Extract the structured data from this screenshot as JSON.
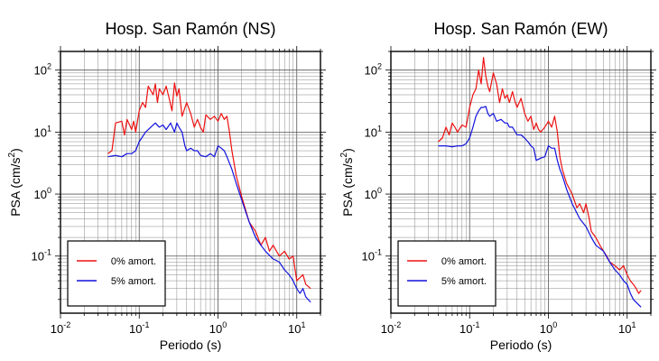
{
  "chart_data": [
    {
      "type": "line",
      "title": "Hosp. San Ramón (NS)",
      "xlabel": "Periodo (s)",
      "ylabel": "PSA (cm/s²)",
      "ylabel_main": "PSA (cm/s",
      "ylabel_sup": "2",
      "ylabel_close": ")",
      "x_scale": "log",
      "y_scale": "log",
      "xlim": [
        0.01,
        20
      ],
      "ylim": [
        0.012,
        200
      ],
      "grid": true,
      "legend_position": "bottom-left",
      "x_ticks": [
        {
          "value": 0.01,
          "base": "10",
          "exp": "-2"
        },
        {
          "value": 0.1,
          "base": "10",
          "exp": "-1"
        },
        {
          "value": 1,
          "base": "10",
          "exp": "0"
        },
        {
          "value": 10,
          "base": "10",
          "exp": "1"
        }
      ],
      "y_ticks": [
        {
          "value": 100,
          "base": "10",
          "exp": "2"
        },
        {
          "value": 10,
          "base": "10",
          "exp": "1"
        },
        {
          "value": 1,
          "base": "10",
          "exp": "0"
        },
        {
          "value": 0.1,
          "base": "10",
          "exp": "-1"
        }
      ],
      "series": [
        {
          "name": "0% amort.",
          "color": "#ee1111",
          "points": [
            [
              0.04,
              4.5
            ],
            [
              0.045,
              5
            ],
            [
              0.05,
              14
            ],
            [
              0.06,
              15
            ],
            [
              0.065,
              9
            ],
            [
              0.07,
              16
            ],
            [
              0.08,
              11
            ],
            [
              0.085,
              15
            ],
            [
              0.09,
              10
            ],
            [
              0.1,
              22
            ],
            [
              0.11,
              30
            ],
            [
              0.12,
              25
            ],
            [
              0.13,
              55
            ],
            [
              0.15,
              40
            ],
            [
              0.16,
              60
            ],
            [
              0.17,
              30
            ],
            [
              0.18,
              50
            ],
            [
              0.2,
              40
            ],
            [
              0.22,
              55
            ],
            [
              0.24,
              35
            ],
            [
              0.26,
              22
            ],
            [
              0.28,
              62
            ],
            [
              0.3,
              38
            ],
            [
              0.32,
              50
            ],
            [
              0.35,
              18
            ],
            [
              0.4,
              30
            ],
            [
              0.45,
              20
            ],
            [
              0.5,
              12
            ],
            [
              0.55,
              16
            ],
            [
              0.6,
              12
            ],
            [
              0.65,
              10
            ],
            [
              0.7,
              19
            ],
            [
              0.8,
              16
            ],
            [
              0.9,
              18
            ],
            [
              1.0,
              15
            ],
            [
              1.1,
              20
            ],
            [
              1.2,
              16
            ],
            [
              1.3,
              18
            ],
            [
              1.4,
              10
            ],
            [
              1.5,
              5
            ],
            [
              1.7,
              2
            ],
            [
              2.0,
              0.9
            ],
            [
              2.5,
              0.35
            ],
            [
              3.0,
              0.25
            ],
            [
              3.5,
              0.15
            ],
            [
              4.0,
              0.2
            ],
            [
              4.5,
              0.12
            ],
            [
              5.0,
              0.15
            ],
            [
              6.0,
              0.1
            ],
            [
              7.0,
              0.12
            ],
            [
              8.0,
              0.09
            ],
            [
              9.0,
              0.1
            ],
            [
              10,
              0.04
            ],
            [
              11,
              0.045
            ],
            [
              12,
              0.05
            ],
            [
              13,
              0.035
            ],
            [
              15,
              0.03
            ]
          ]
        },
        {
          "name": "5% amort.",
          "color": "#1111dd",
          "points": [
            [
              0.04,
              4
            ],
            [
              0.05,
              4.2
            ],
            [
              0.06,
              4
            ],
            [
              0.07,
              4.5
            ],
            [
              0.08,
              4.5
            ],
            [
              0.09,
              5
            ],
            [
              0.1,
              7
            ],
            [
              0.12,
              10
            ],
            [
              0.14,
              12
            ],
            [
              0.16,
              14
            ],
            [
              0.18,
              12
            ],
            [
              0.2,
              13
            ],
            [
              0.22,
              11
            ],
            [
              0.25,
              14
            ],
            [
              0.28,
              10
            ],
            [
              0.3,
              14
            ],
            [
              0.32,
              12
            ],
            [
              0.35,
              10
            ],
            [
              0.38,
              6
            ],
            [
              0.4,
              5
            ],
            [
              0.45,
              5.5
            ],
            [
              0.5,
              5
            ],
            [
              0.55,
              5
            ],
            [
              0.6,
              4.2
            ],
            [
              0.7,
              4
            ],
            [
              0.8,
              4.5
            ],
            [
              0.9,
              4
            ],
            [
              1.0,
              6
            ],
            [
              1.1,
              5.5
            ],
            [
              1.2,
              5
            ],
            [
              1.3,
              4
            ],
            [
              1.5,
              2.5
            ],
            [
              1.7,
              1.5
            ],
            [
              2.0,
              0.8
            ],
            [
              2.5,
              0.35
            ],
            [
              3.0,
              0.2
            ],
            [
              3.5,
              0.15
            ],
            [
              4.0,
              0.12
            ],
            [
              5.0,
              0.09
            ],
            [
              6.0,
              0.08
            ],
            [
              7.0,
              0.06
            ],
            [
              8.0,
              0.05
            ],
            [
              9.0,
              0.04
            ],
            [
              10,
              0.03
            ],
            [
              11,
              0.025
            ],
            [
              12,
              0.03
            ],
            [
              13,
              0.022
            ],
            [
              15,
              0.018
            ]
          ]
        }
      ]
    },
    {
      "type": "line",
      "title": "Hosp. San Ramón (EW)",
      "xlabel": "Periodo (s)",
      "ylabel": "PSA (cm/s²)",
      "ylabel_main": "PSA (cm/s",
      "ylabel_sup": "2",
      "ylabel_close": ")",
      "x_scale": "log",
      "y_scale": "log",
      "xlim": [
        0.01,
        20
      ],
      "ylim": [
        0.012,
        200
      ],
      "grid": true,
      "legend_position": "bottom-left",
      "x_ticks": [
        {
          "value": 0.01,
          "base": "10",
          "exp": "-2"
        },
        {
          "value": 0.1,
          "base": "10",
          "exp": "-1"
        },
        {
          "value": 1,
          "base": "10",
          "exp": "0"
        },
        {
          "value": 10,
          "base": "10",
          "exp": "1"
        }
      ],
      "y_ticks": [
        {
          "value": 100,
          "base": "10",
          "exp": "2"
        },
        {
          "value": 10,
          "base": "10",
          "exp": "1"
        },
        {
          "value": 1,
          "base": "10",
          "exp": "0"
        },
        {
          "value": 0.1,
          "base": "10",
          "exp": "-1"
        }
      ],
      "series": [
        {
          "name": "0% amort.",
          "color": "#ee1111",
          "points": [
            [
              0.04,
              7
            ],
            [
              0.045,
              8
            ],
            [
              0.05,
              12
            ],
            [
              0.055,
              9
            ],
            [
              0.06,
              14
            ],
            [
              0.065,
              12
            ],
            [
              0.07,
              10
            ],
            [
              0.08,
              13
            ],
            [
              0.09,
              12
            ],
            [
              0.1,
              25
            ],
            [
              0.11,
              40
            ],
            [
              0.12,
              50
            ],
            [
              0.13,
              100
            ],
            [
              0.14,
              60
            ],
            [
              0.15,
              160
            ],
            [
              0.16,
              80
            ],
            [
              0.17,
              55
            ],
            [
              0.18,
              45
            ],
            [
              0.2,
              90
            ],
            [
              0.22,
              60
            ],
            [
              0.24,
              30
            ],
            [
              0.26,
              50
            ],
            [
              0.28,
              35
            ],
            [
              0.3,
              40
            ],
            [
              0.32,
              30
            ],
            [
              0.35,
              45
            ],
            [
              0.38,
              30
            ],
            [
              0.4,
              25
            ],
            [
              0.45,
              35
            ],
            [
              0.5,
              20
            ],
            [
              0.55,
              15
            ],
            [
              0.6,
              18
            ],
            [
              0.65,
              11
            ],
            [
              0.7,
              14
            ],
            [
              0.75,
              11
            ],
            [
              0.8,
              10
            ],
            [
              0.9,
              12
            ],
            [
              1.0,
              15
            ],
            [
              1.1,
              12
            ],
            [
              1.2,
              18
            ],
            [
              1.3,
              10
            ],
            [
              1.4,
              4
            ],
            [
              1.5,
              2.5
            ],
            [
              1.7,
              1.5
            ],
            [
              2.0,
              1
            ],
            [
              2.3,
              0.6
            ],
            [
              2.5,
              0.7
            ],
            [
              2.8,
              0.5
            ],
            [
              3.0,
              0.7
            ],
            [
              3.3,
              0.4
            ],
            [
              3.5,
              0.25
            ],
            [
              4.0,
              0.2
            ],
            [
              4.5,
              0.15
            ],
            [
              5.0,
              0.12
            ],
            [
              5.5,
              0.1
            ],
            [
              6.0,
              0.08
            ],
            [
              7.0,
              0.07
            ],
            [
              8.0,
              0.06
            ],
            [
              9.0,
              0.07
            ],
            [
              10,
              0.05
            ],
            [
              11,
              0.04
            ],
            [
              12,
              0.035
            ],
            [
              13,
              0.03
            ],
            [
              14,
              0.025
            ],
            [
              15,
              0.028
            ]
          ]
        },
        {
          "name": "5% amort.",
          "color": "#1111dd",
          "points": [
            [
              0.04,
              6
            ],
            [
              0.05,
              6
            ],
            [
              0.06,
              5.8
            ],
            [
              0.07,
              6
            ],
            [
              0.08,
              6
            ],
            [
              0.09,
              6.5
            ],
            [
              0.1,
              8
            ],
            [
              0.11,
              12
            ],
            [
              0.12,
              18
            ],
            [
              0.13,
              22
            ],
            [
              0.14,
              25
            ],
            [
              0.15,
              25
            ],
            [
              0.16,
              26
            ],
            [
              0.17,
              20
            ],
            [
              0.18,
              18
            ],
            [
              0.2,
              20
            ],
            [
              0.22,
              15
            ],
            [
              0.25,
              16
            ],
            [
              0.28,
              14
            ],
            [
              0.3,
              14
            ],
            [
              0.32,
              12
            ],
            [
              0.35,
              12
            ],
            [
              0.4,
              9
            ],
            [
              0.45,
              9
            ],
            [
              0.5,
              8
            ],
            [
              0.55,
              7
            ],
            [
              0.6,
              6
            ],
            [
              0.65,
              5.5
            ],
            [
              0.7,
              3.5
            ],
            [
              0.8,
              3.8
            ],
            [
              0.9,
              4
            ],
            [
              1.0,
              6
            ],
            [
              1.1,
              5.5
            ],
            [
              1.2,
              5.5
            ],
            [
              1.3,
              3.5
            ],
            [
              1.4,
              2.5
            ],
            [
              1.5,
              2
            ],
            [
              1.7,
              1.2
            ],
            [
              2.0,
              0.7
            ],
            [
              2.5,
              0.4
            ],
            [
              3.0,
              0.3
            ],
            [
              3.5,
              0.2
            ],
            [
              4.0,
              0.15
            ],
            [
              5.0,
              0.12
            ],
            [
              6.0,
              0.08
            ],
            [
              7.0,
              0.06
            ],
            [
              8.0,
              0.05
            ],
            [
              9.0,
              0.04
            ],
            [
              10,
              0.035
            ],
            [
              11,
              0.025
            ],
            [
              12,
              0.02
            ],
            [
              13,
              0.018
            ],
            [
              15,
              0.015
            ]
          ]
        }
      ]
    }
  ]
}
